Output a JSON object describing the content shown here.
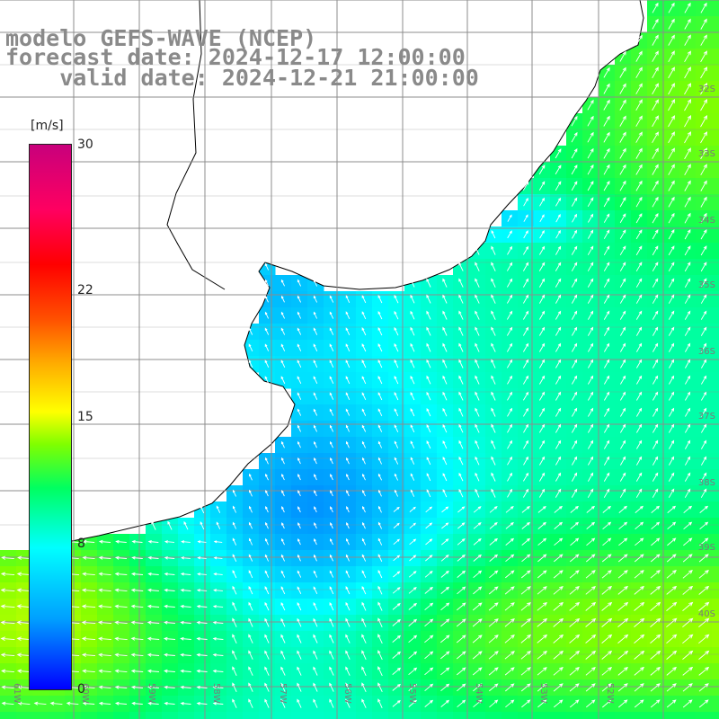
{
  "title": {
    "line1": "modelo GEFS-WAVE (NCEP)",
    "line2": "forecast date: 2024-12-17 12:00:00",
    "line3": "    valid date: 2024-12-21 21:00:00"
  },
  "colorbar": {
    "unit": "[m/s]",
    "min": 0,
    "max": 30,
    "ticks": [
      {
        "value": 30,
        "label": "30"
      },
      {
        "value": 22,
        "label": "22"
      },
      {
        "value": 15,
        "label": "15"
      },
      {
        "value": 8,
        "label": "8"
      },
      {
        "value": 0,
        "label": "0"
      }
    ],
    "colors": [
      "#0000ff",
      "#00a0ff",
      "#00ffff",
      "#00ff60",
      "#80ff00",
      "#ffff00",
      "#ffaa00",
      "#ff5000",
      "#ff0000",
      "#ff0060",
      "#c8007c"
    ]
  },
  "map": {
    "land_color": "#ffffff",
    "coastline_color": "#000000",
    "grid_color": "#8c8c8c",
    "vector_color": "#ffffff",
    "lat_labels": [
      "32S",
      "33S",
      "34S",
      "35S",
      "36S",
      "37S",
      "38S",
      "39S",
      "40S"
    ],
    "lon_labels": [
      "61W",
      "60W",
      "59W",
      "58W",
      "57W",
      "56W",
      "55W",
      "54W",
      "53W",
      "52W"
    ]
  }
}
